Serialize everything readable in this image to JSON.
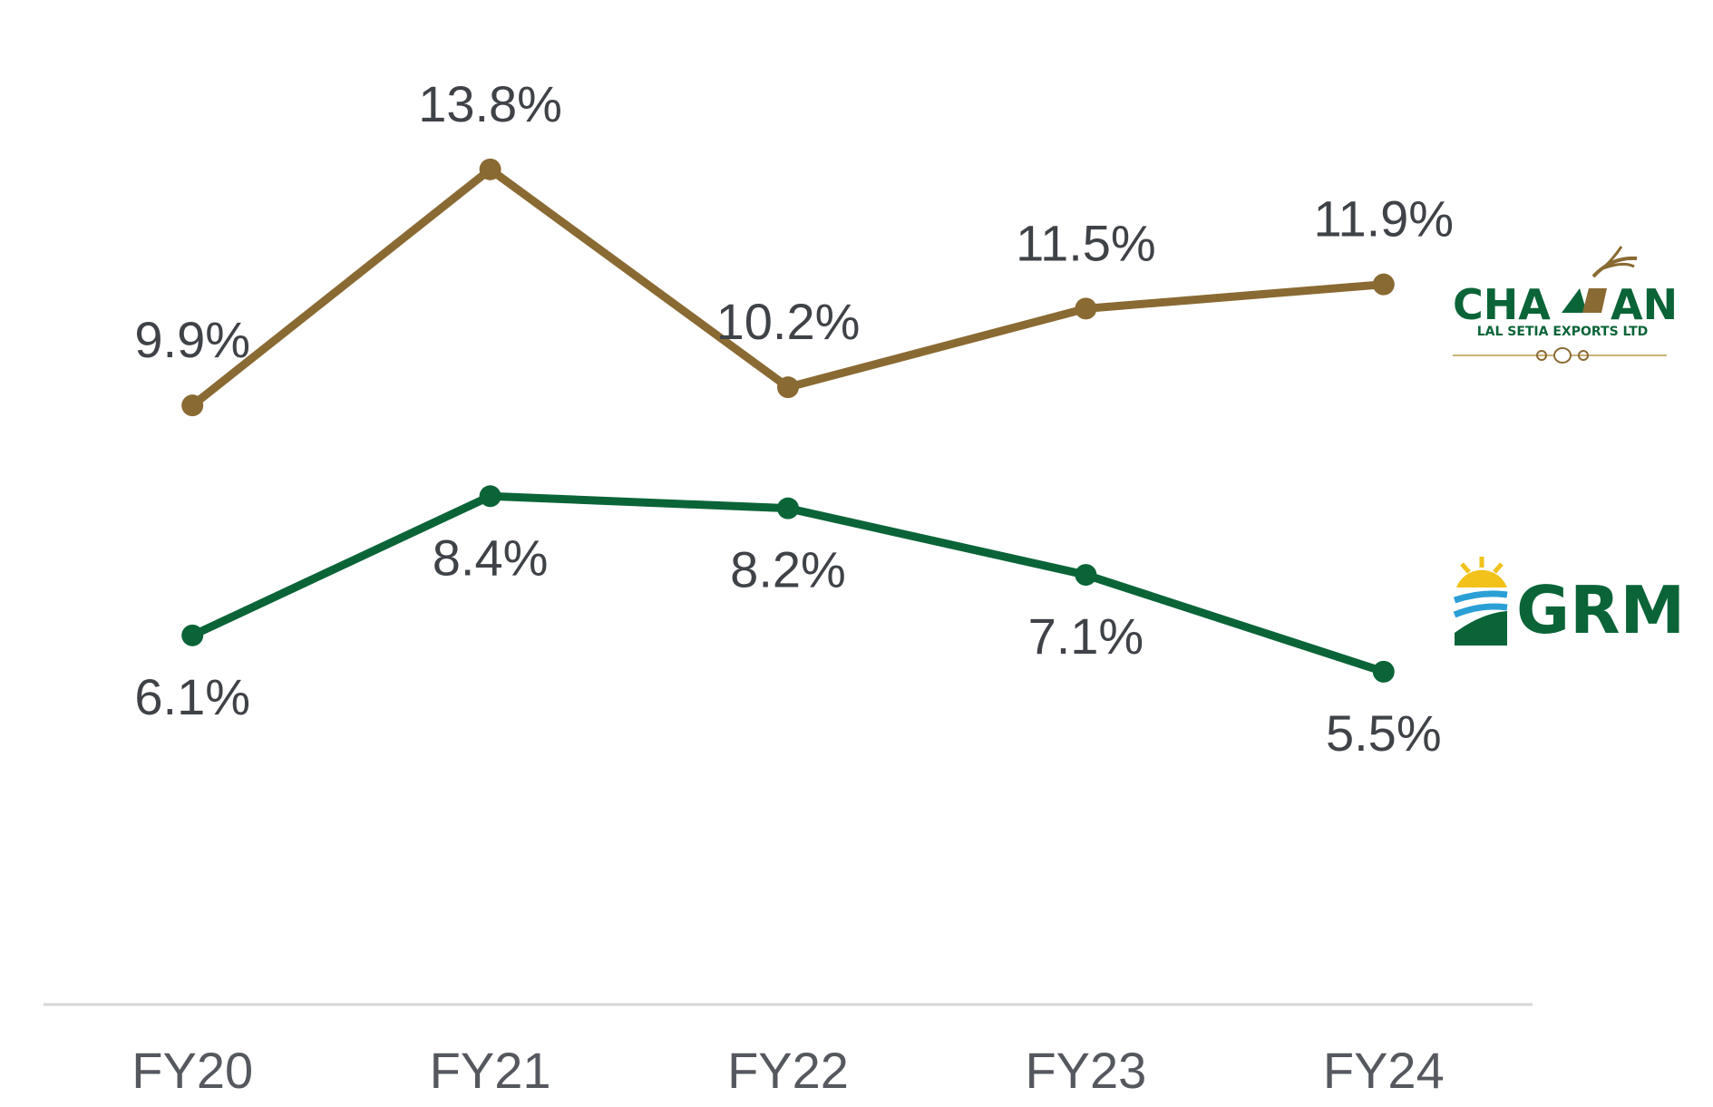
{
  "chart_data": {
    "type": "line",
    "categories": [
      "FY20",
      "FY21",
      "FY22",
      "FY23",
      "FY24"
    ],
    "series": [
      {
        "name": "CHAMAN LAL SETIA EXPORTS LTD",
        "values": [
          9.9,
          13.8,
          10.2,
          11.5,
          11.9
        ],
        "labels": [
          "9.9%",
          "13.8%",
          "10.2%",
          "11.5%",
          "11.9%"
        ],
        "color": "#8a6a33",
        "label_position": "above"
      },
      {
        "name": "GRM",
        "values": [
          6.1,
          8.4,
          8.2,
          7.1,
          5.5
        ],
        "labels": [
          "6.1%",
          "8.4%",
          "8.2%",
          "7.1%",
          "5.5%"
        ],
        "color": "#0b6438",
        "label_position": "below"
      }
    ],
    "title": "",
    "xlabel": "",
    "ylabel": "",
    "ylim": [
      0,
      16
    ],
    "grid": false,
    "legend": "right-logos"
  },
  "legend": {
    "chaman": {
      "word_left": "CHA",
      "word_right": "AN",
      "subtitle": "LAL SETIA EXPORTS LTD",
      "icon": "wheat-field-icon",
      "color": "#0b6438",
      "accent": "#8a6a33"
    },
    "grm": {
      "word": "GRM",
      "icon": "sunrise-field-icon",
      "color": "#0b6438",
      "accent_colors": [
        "#f2c21b",
        "#2a9fd6",
        "#0b6438"
      ]
    }
  }
}
